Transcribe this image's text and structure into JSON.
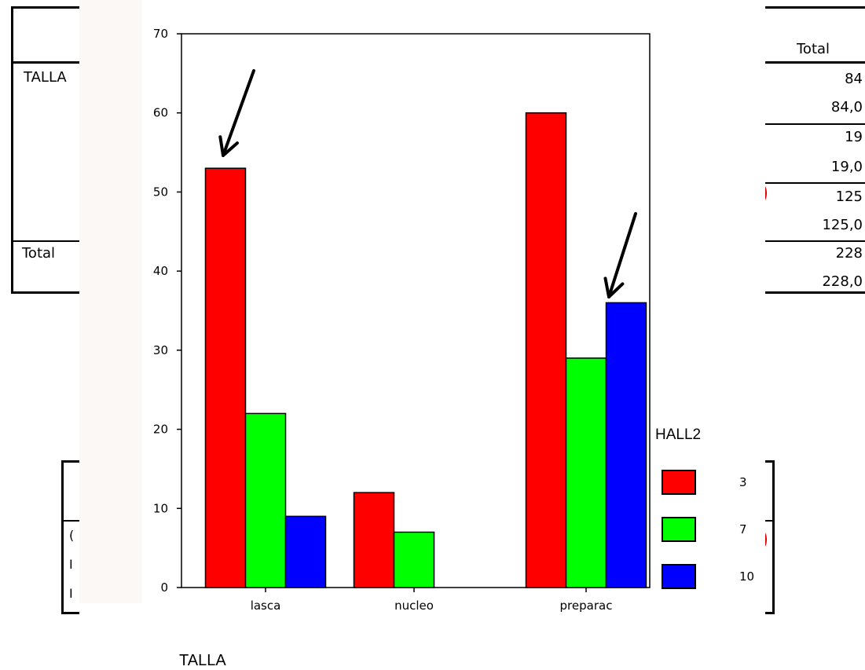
{
  "background_table": {
    "header_total": "Total",
    "row_label_talla": "TALLA",
    "row_label_total": "Total",
    "totals": [
      "84",
      "84,0",
      "19",
      "19,0",
      "125",
      "125,0",
      "228",
      "228,0"
    ],
    "lower_box_letters": [
      "(",
      "I",
      "I"
    ]
  },
  "chart_data": {
    "type": "bar",
    "categories": [
      "lasca",
      "nucleo",
      "preparac"
    ],
    "series": [
      {
        "name": "3",
        "values": [
          53,
          12,
          60
        ],
        "color": "#ff0000"
      },
      {
        "name": "7",
        "values": [
          22,
          7,
          29
        ],
        "color": "#00ff00"
      },
      {
        "name": "10",
        "values": [
          9,
          0,
          36
        ],
        "color": "#0000ff"
      }
    ],
    "title": "",
    "xlabel": "TALLA",
    "ylabel": "",
    "ylim": [
      0,
      70
    ],
    "yticks": [
      0,
      10,
      20,
      30,
      40,
      50,
      60,
      70
    ],
    "legend_title": "HALL2",
    "legend_position": "right",
    "grid": false,
    "annotations": [
      "arrow pointing to lasca / 3 bar",
      "arrow pointing to preparac / 10 bar"
    ]
  }
}
